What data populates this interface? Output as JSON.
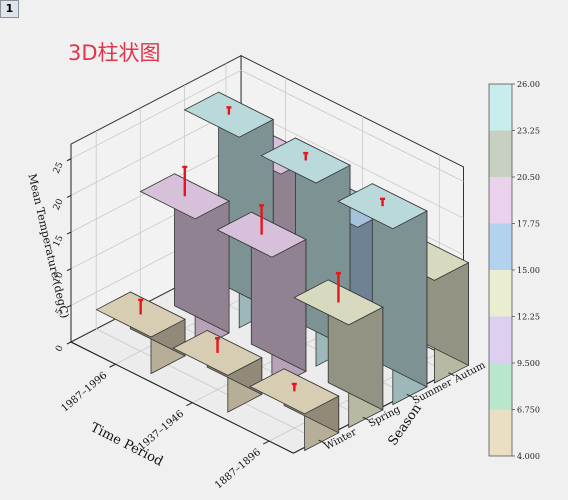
{
  "page": {
    "badge": "1"
  },
  "chart_data": {
    "type": "bar",
    "subtype": "3d-bar-with-error-bars",
    "title": "3D柱状图",
    "title_color": "#e0344f",
    "xlabel": "Season",
    "ylabel": "Time Period",
    "zlabel": "Mean Temperature (degC)",
    "x_categories": [
      "Winter",
      "Spring",
      "Summer",
      "Autum"
    ],
    "y_categories": [
      "1887–1896",
      "1937–1946",
      "1987–1996"
    ],
    "z_ticks": [
      "0",
      "5",
      "10",
      "15",
      "20",
      "25"
    ],
    "zlim": [
      0,
      27
    ],
    "grid": true,
    "legend_placement": "right",
    "bars": [
      {
        "period": "1887–1896",
        "season": "Winter",
        "value": 5.0,
        "error": 1.0
      },
      {
        "period": "1887–1896",
        "season": "Spring",
        "value": 14.0,
        "error": 4.0
      },
      {
        "period": "1887–1896",
        "season": "Summer",
        "value": 24.0,
        "error": 1.0
      },
      {
        "period": "1887–1896",
        "season": "Autum",
        "value": 14.0,
        "error": 4.0
      },
      {
        "period": "1937–1946",
        "season": "Winter",
        "value": 5.0,
        "error": 2.0
      },
      {
        "period": "1937–1946",
        "season": "Spring",
        "value": 18.0,
        "error": 4.0
      },
      {
        "period": "1937–1946",
        "season": "Summer",
        "value": 25.0,
        "error": 1.0
      },
      {
        "period": "1937–1946",
        "season": "Autum",
        "value": 16.0,
        "error": 4.0
      },
      {
        "period": "1987–1996",
        "season": "Winter",
        "value": 5.0,
        "error": 2.0
      },
      {
        "period": "1987–1996",
        "season": "Spring",
        "value": 18.0,
        "error": 4.0
      },
      {
        "period": "1987–1996",
        "season": "Summer",
        "value": 26.0,
        "error": 1.0
      },
      {
        "period": "1987–1996",
        "season": "Autum",
        "value": 18.0,
        "error": 4.0
      }
    ],
    "color_scale": {
      "ticks": [
        "4.000",
        "6.750",
        "9.500",
        "12.25",
        "15.00",
        "17.75",
        "20.50",
        "23.25",
        "26.00"
      ],
      "min": 4.0,
      "max": 26.0,
      "bands": [
        "#eadfc2",
        "#b9e6cd",
        "#dccff0",
        "#ebedd1",
        "#b3d2ee",
        "#ead1ec",
        "#c8d0c1",
        "#c9eced"
      ]
    }
  }
}
